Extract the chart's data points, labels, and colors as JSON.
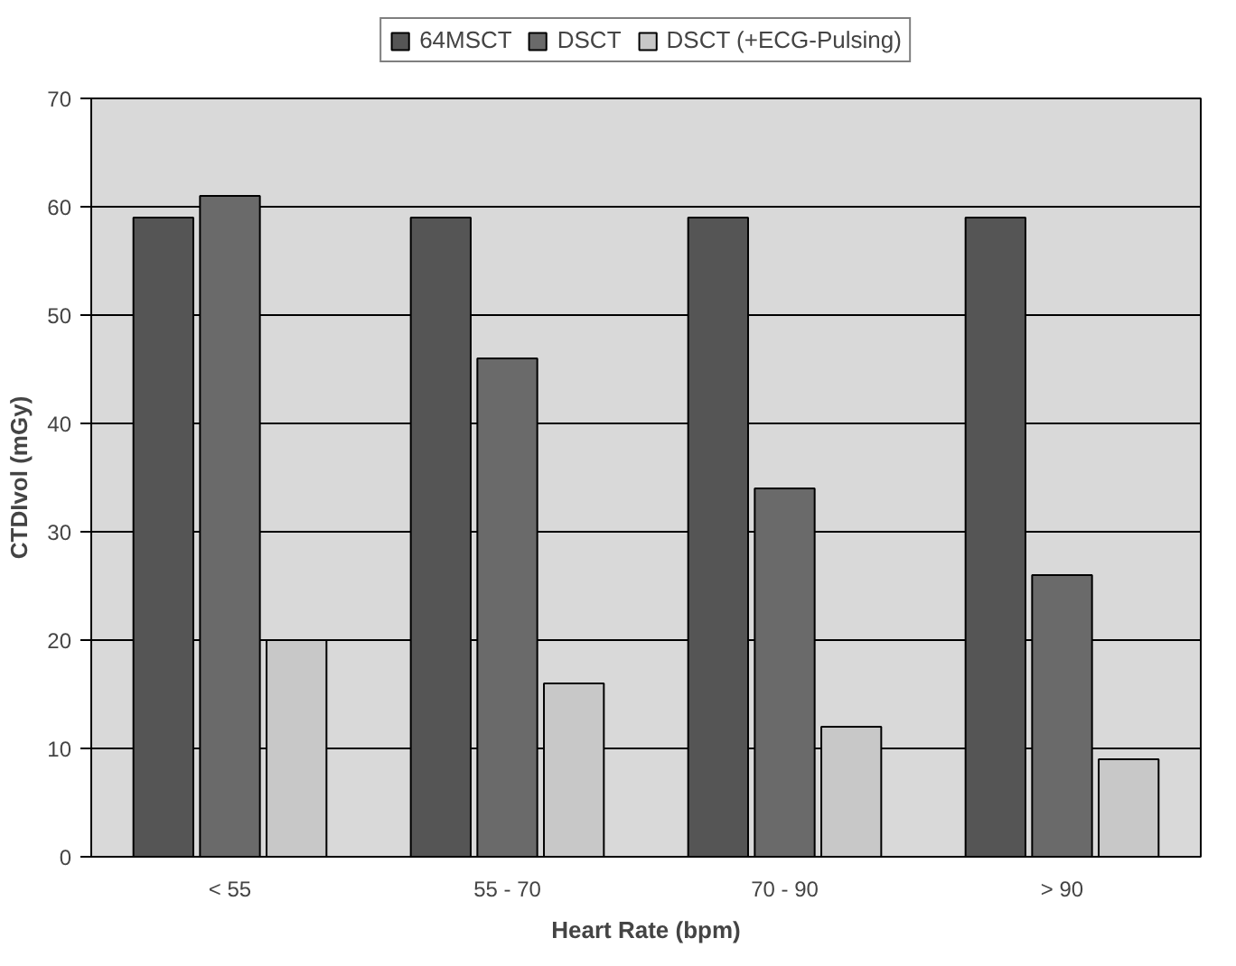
{
  "chart_data": {
    "type": "bar",
    "xlabel": "Heart Rate (bpm)",
    "ylabel": "CTDIvol (mGy)",
    "categories": [
      "< 55",
      "55 - 70",
      "70 - 90",
      "> 90"
    ],
    "series": [
      {
        "name": "64MSCT",
        "color": "#555555",
        "values": [
          59,
          59,
          59,
          59
        ]
      },
      {
        "name": "DSCT",
        "color": "#6a6a6a",
        "values": [
          61,
          46,
          34,
          26
        ]
      },
      {
        "name": "DSCT (+ECG-Pulsing)",
        "color": "#c8c8c8",
        "values": [
          20,
          16,
          12,
          9
        ]
      }
    ],
    "ylim": [
      0,
      70
    ],
    "yticks": [
      0,
      10,
      20,
      30,
      40,
      50,
      60,
      70
    ],
    "grid": "y",
    "legend": "top"
  }
}
